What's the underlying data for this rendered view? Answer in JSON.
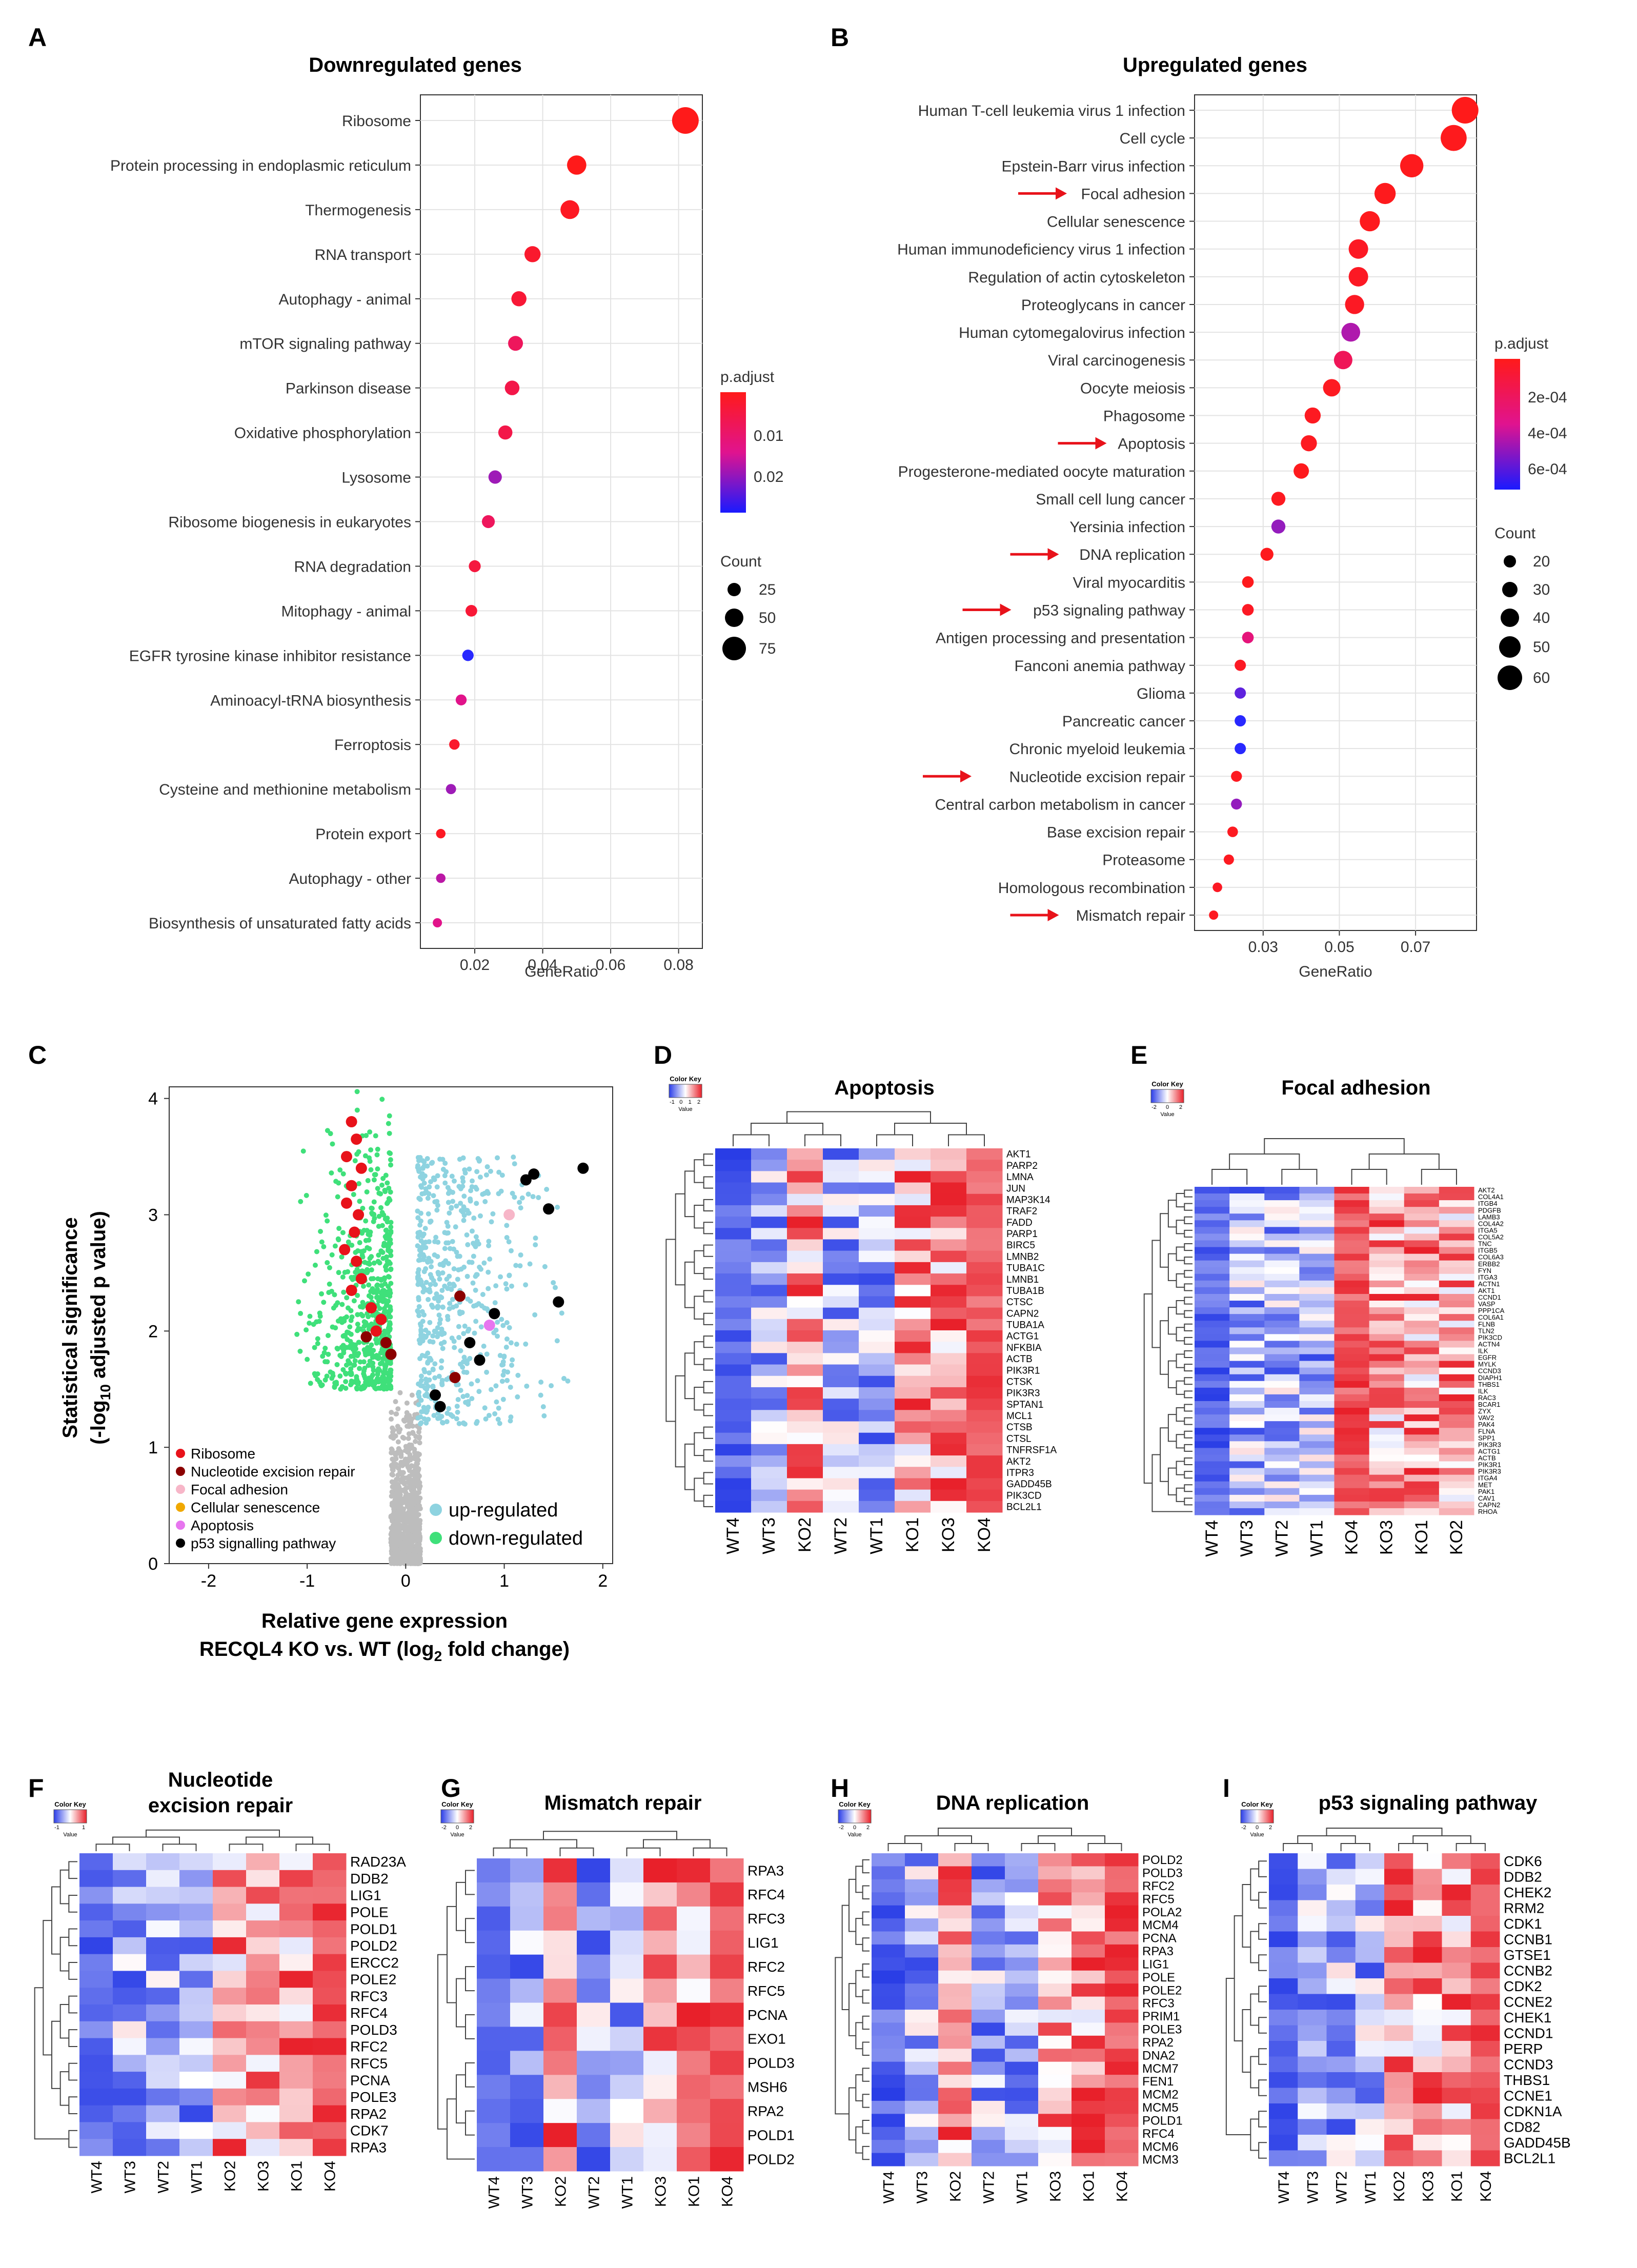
{
  "panel_letters": [
    "A",
    "B",
    "C",
    "D",
    "E",
    "F",
    "G",
    "H",
    "I"
  ],
  "chart_data": [
    {
      "type": "scatter",
      "panel": "A",
      "title": "Downregulated genes",
      "xlabel": "GeneRatio",
      "ylabel": "",
      "categories": [
        "Ribosome",
        "Protein processing in endoplasmic reticulum",
        "Thermogenesis",
        "RNA transport",
        "Autophagy - animal",
        "mTOR signaling pathway",
        "Parkinson disease",
        "Oxidative phosphorylation",
        "Lysosome",
        "Ribosome biogenesis in eukaryotes",
        "RNA degradation",
        "Mitophagy - animal",
        "EGFR tyrosine kinase inhibitor resistance",
        "Aminoacyl-tRNA biosynthesis",
        "Ferroptosis",
        "Cysteine and methionine metabolism",
        "Protein export",
        "Autophagy - other",
        "Biosynthesis of unsaturated fatty acids"
      ],
      "x": [
        0.082,
        0.05,
        0.048,
        0.037,
        0.033,
        0.032,
        0.031,
        0.029,
        0.026,
        0.024,
        0.02,
        0.019,
        0.018,
        0.016,
        0.014,
        0.013,
        0.01,
        0.01,
        0.009
      ],
      "count": [
        80,
        50,
        48,
        37,
        33,
        32,
        31,
        29,
        26,
        24,
        20,
        19,
        18,
        16,
        14,
        13,
        10,
        10,
        9
      ],
      "padj": [
        0.003,
        0.003,
        0.004,
        0.005,
        0.006,
        0.01,
        0.008,
        0.008,
        0.02,
        0.01,
        0.007,
        0.006,
        0.028,
        0.015,
        0.005,
        0.02,
        0.004,
        0.018,
        0.015
      ],
      "xticks": [
        "0.02",
        "0.04",
        "0.06",
        "0.08"
      ],
      "xlim": [
        0.004,
        0.087
      ],
      "legend": {
        "color_title": "p.adjust",
        "color_ticks": [
          "0.01",
          "0.02"
        ],
        "size_title": "Count",
        "size_ticks": [
          "25",
          "50",
          "75"
        ]
      }
    },
    {
      "type": "scatter",
      "panel": "B",
      "title": "Upregulated genes",
      "xlabel": "GeneRatio",
      "ylabel": "",
      "categories": [
        "Human T-cell leukemia virus 1 infection",
        "Cell cycle",
        "Epstein-Barr virus infection",
        "Focal adhesion",
        "Cellular senescence",
        "Human immunodeficiency virus 1 infection",
        "Regulation of actin cytoskeleton",
        "Proteoglycans in cancer",
        "Human cytomegalovirus infection",
        "Viral carcinogenesis",
        "Oocyte meiosis",
        "Phagosome",
        "Apoptosis",
        "Progesterone-mediated oocyte maturation",
        "Small cell lung cancer",
        "Yersinia infection",
        "DNA replication",
        "Viral myocarditis",
        "p53 signaling pathway",
        "Antigen processing and presentation",
        "Fanconi anemia pathway",
        "Glioma",
        "Pancreatic cancer",
        "Chronic myeloid leukemia",
        "Nucleotide excision repair",
        "Central carbon metabolism in cancer",
        "Base excision repair",
        "Proteasome",
        "Homologous recombination",
        "Mismatch repair"
      ],
      "x": [
        0.083,
        0.08,
        0.069,
        0.062,
        0.058,
        0.055,
        0.055,
        0.054,
        0.053,
        0.051,
        0.048,
        0.043,
        0.042,
        0.04,
        0.034,
        0.034,
        0.031,
        0.026,
        0.026,
        0.026,
        0.024,
        0.024,
        0.024,
        0.024,
        0.023,
        0.023,
        0.022,
        0.021,
        0.018,
        0.017
      ],
      "count": [
        64,
        62,
        54,
        48,
        45,
        43,
        43,
        42,
        41,
        40,
        37,
        33,
        33,
        31,
        27,
        27,
        24,
        20,
        20,
        20,
        19,
        19,
        19,
        19,
        18,
        18,
        17,
        16,
        14,
        13
      ],
      "padj": [
        2e-05,
        3e-05,
        3e-05,
        3e-05,
        3e-05,
        5e-05,
        5e-05,
        5e-05,
        0.00045,
        0.0002,
        4e-05,
        4e-05,
        4e-05,
        3e-05,
        4e-05,
        0.0005,
        3e-05,
        3e-05,
        5e-05,
        0.0003,
        5e-05,
        0.0006,
        0.0007,
        0.0007,
        4e-05,
        0.0005,
        4e-05,
        4e-05,
        5e-05,
        4e-05
      ],
      "highlighted": [
        "Focal adhesion",
        "Apoptosis",
        "DNA replication",
        "p53 signaling pathway",
        "Nucleotide excision repair",
        "Mismatch repair"
      ],
      "xticks": [
        "0.03",
        "0.05",
        "0.07"
      ],
      "xlim": [
        0.012,
        0.086
      ],
      "legend": {
        "color_title": "p.adjust",
        "color_ticks": [
          "2e-04",
          "4e-04",
          "6e-04"
        ],
        "size_title": "Count",
        "size_ticks": [
          "20",
          "30",
          "40",
          "50",
          "60"
        ]
      }
    },
    {
      "type": "scatter",
      "panel": "C",
      "title": "",
      "xlabel_line1": "Relative gene expression",
      "xlabel_line2": "RECQL4 KO vs. WT (log",
      "xlabel_sub": "2",
      "xlabel_tail": " fold change)",
      "ylabel_line1": "Statistical significance",
      "ylabel_line2a": "(-log",
      "ylabel_sub": "10",
      "ylabel_line2b": " adjusted p value)",
      "xticks": [
        "-2",
        "-1",
        "0",
        "1",
        "2"
      ],
      "yticks": [
        "0",
        "1",
        "2",
        "3",
        "4"
      ],
      "xlim": [
        -2.4,
        2.1
      ],
      "ylim": [
        0,
        4.1
      ],
      "legend": {
        "Ribosome": "#e8121a",
        "Nucleotide excision repair": "#8b0000",
        "Focal adhesion": "#f7b6c8",
        "Cellular senescence": "#f0a800",
        "Apoptosis": "#e776ef",
        "p53 signalling pathway": "#000000"
      },
      "direction_legend": {
        "up": "up-regulated",
        "down": "down-regulated"
      },
      "highlight_points": [
        [
          -0.55,
          3.8
        ],
        [
          -0.5,
          3.65
        ],
        [
          -0.6,
          3.5
        ],
        [
          -0.45,
          3.4
        ],
        [
          -0.55,
          3.25
        ],
        [
          -0.6,
          3.1
        ],
        [
          -0.48,
          3.0
        ],
        [
          -0.52,
          2.85
        ],
        [
          -0.62,
          2.7
        ],
        [
          -0.5,
          2.6
        ],
        [
          -0.45,
          2.45
        ],
        [
          -0.55,
          2.35
        ],
        [
          -0.35,
          2.2
        ],
        [
          -0.25,
          2.1
        ],
        [
          -0.3,
          2.0
        ],
        [
          -0.2,
          1.9
        ],
        [
          -0.15,
          1.8
        ],
        [
          -0.4,
          1.95
        ],
        [
          1.8,
          3.4
        ],
        [
          1.45,
          3.05
        ],
        [
          1.3,
          3.35
        ],
        [
          1.22,
          3.3
        ],
        [
          1.05,
          3.0
        ],
        [
          0.55,
          2.3
        ],
        [
          0.9,
          2.15
        ],
        [
          1.55,
          2.25
        ],
        [
          0.85,
          2.05
        ],
        [
          0.65,
          1.9
        ],
        [
          0.75,
          1.75
        ],
        [
          0.5,
          1.6
        ],
        [
          0.3,
          1.45
        ],
        [
          0.35,
          1.35
        ]
      ],
      "highlight_colors": [
        "#e8121a",
        "#e8121a",
        "#e8121a",
        "#e8121a",
        "#e8121a",
        "#e8121a",
        "#e8121a",
        "#e8121a",
        "#e8121a",
        "#e8121a",
        "#e8121a",
        "#e8121a",
        "#e8121a",
        "#e8121a",
        "#e8121a",
        "#8b0000",
        "#8b0000",
        "#8b0000",
        "#000000",
        "#000000",
        "#000000",
        "#000000",
        "#f7b6c8",
        "#8b0000",
        "#000000",
        "#000000",
        "#e776ef",
        "#000000",
        "#000000",
        "#8b0000",
        "#000000",
        "#000000"
      ]
    },
    {
      "type": "heatmap",
      "panel": "D",
      "title": "Apoptosis",
      "columns": [
        "WT4",
        "WT3",
        "KO2",
        "WT2",
        "WT1",
        "KO1",
        "KO3",
        "KO4"
      ],
      "rows": [
        "AKT1",
        "PARP2",
        "LMNA",
        "JUN",
        "MAP3K14",
        "TRAF2",
        "FADD",
        "PARP1",
        "BIRC5",
        "LMNB2",
        "TUBA1C",
        "LMNB1",
        "TUBA1B",
        "CTSC",
        "CAPN2",
        "TUBA1A",
        "ACTG1",
        "NFKBIA",
        "ACTB",
        "PIK3R1",
        "CTSK",
        "PIK3R3",
        "SPTAN1",
        "MCL1",
        "CTSB",
        "CTSL",
        "TNFRSF1A",
        "AKT2",
        "ITPR3",
        "GADD45B",
        "PIK3CD",
        "BCL2L1"
      ],
      "color_key": "Color Key",
      "value_label": "Value",
      "scale": [
        "-1",
        "0",
        "1",
        "2"
      ]
    },
    {
      "type": "heatmap",
      "panel": "E",
      "title": "Focal adhesion",
      "columns": [
        "WT4",
        "WT3",
        "WT2",
        "WT1",
        "KO4",
        "KO3",
        "KO1",
        "KO2"
      ],
      "rows": [
        "AKT2",
        "COL4A1",
        "ITGB4",
        "PDGFB",
        "LAMB3",
        "COL4A2",
        "ITGA5",
        "COL5A2",
        "TNC",
        "ITGB5",
        "COL6A3",
        "ERBB2",
        "FYN",
        "ITGA3",
        "ACTN1",
        "AKT1",
        "CCND1",
        "VASP",
        "PPP1CA",
        "COL6A1",
        "FLNB",
        "TLN2",
        "PIK3CD",
        "ACTN4",
        "ILK",
        "EGFR",
        "MYLK",
        "CCND3",
        "DIAPH1",
        "THBS1",
        "ILK",
        "RAC3",
        "BCAR1",
        "ZYX",
        "VAV2",
        "PAK4",
        "FLNA",
        "SPP1",
        "PIK3R3",
        "ACTG1",
        "ACTB",
        "PIK3R1",
        "PIK3R3",
        "ITGA4",
        "MET",
        "PAK1",
        "CAV1",
        "CAPN2",
        "RHOA"
      ],
      "color_key": "Color Key",
      "value_label": "Value",
      "scale": [
        "-2",
        "0",
        "2"
      ]
    },
    {
      "type": "heatmap",
      "panel": "F",
      "title_line1": "Nucleotide",
      "title_line2": "excision repair",
      "columns": [
        "WT4",
        "WT3",
        "WT2",
        "WT1",
        "KO2",
        "KO3",
        "KO1",
        "KO4"
      ],
      "rows": [
        "RAD23A",
        "DDB2",
        "LIG1",
        "POLE",
        "POLD1",
        "POLD2",
        "ERCC2",
        "POLE2",
        "RFC3",
        "RFC4",
        "POLD3",
        "RFC2",
        "RFC5",
        "PCNA",
        "POLE3",
        "RPA2",
        "CDK7",
        "RPA3"
      ],
      "color_key": "Color Key",
      "value_label": "Value",
      "scale": [
        "-1",
        "1"
      ]
    },
    {
      "type": "heatmap",
      "panel": "G",
      "title": "Mismatch repair",
      "columns": [
        "WT4",
        "WT3",
        "KO2",
        "WT2",
        "WT1",
        "KO3",
        "KO1",
        "KO4"
      ],
      "rows": [
        "RPA3",
        "RFC4",
        "RFC3",
        "LIG1",
        "RFC2",
        "RFC5",
        "PCNA",
        "EXO1",
        "POLD3",
        "MSH6",
        "RPA2",
        "POLD1",
        "POLD2"
      ],
      "color_key": "Color Key",
      "value_label": "Value",
      "scale": [
        "-2",
        "0",
        "2"
      ]
    },
    {
      "type": "heatmap",
      "panel": "H",
      "title": "DNA replication",
      "columns": [
        "WT4",
        "WT3",
        "KO2",
        "WT2",
        "WT1",
        "KO3",
        "KO1",
        "KO4"
      ],
      "rows": [
        "POLD2",
        "POLD3",
        "RFC2",
        "RFC5",
        "POLA2",
        "MCM4",
        "PCNA",
        "RPA3",
        "LIG1",
        "POLE",
        "POLE2",
        "RFC3",
        "PRIM1",
        "POLE3",
        "RPA2",
        "DNA2",
        "MCM7",
        "FEN1",
        "MCM2",
        "MCM5",
        "POLD1",
        "RFC4",
        "MCM6",
        "MCM3"
      ],
      "color_key": "Color Key",
      "value_label": "Value",
      "scale": [
        "-2",
        "0",
        "2"
      ]
    },
    {
      "type": "heatmap",
      "panel": "I",
      "title": "p53 signaling pathway",
      "columns": [
        "WT4",
        "WT3",
        "WT2",
        "WT1",
        "KO2",
        "KO3",
        "KO1",
        "KO4"
      ],
      "rows": [
        "CDK6",
        "DDB2",
        "CHEK2",
        "RRM2",
        "CDK1",
        "CCNB1",
        "GTSE1",
        "CCNB2",
        "CDK2",
        "CCNE2",
        "CHEK1",
        "CCND1",
        "PERP",
        "CCND3",
        "THBS1",
        "CCNE1",
        "CDKN1A",
        "CD82",
        "GADD45B",
        "BCL2L1"
      ],
      "color_key": "Color Key",
      "value_label": "Value",
      "scale": [
        "-2",
        "0",
        "2"
      ]
    }
  ]
}
